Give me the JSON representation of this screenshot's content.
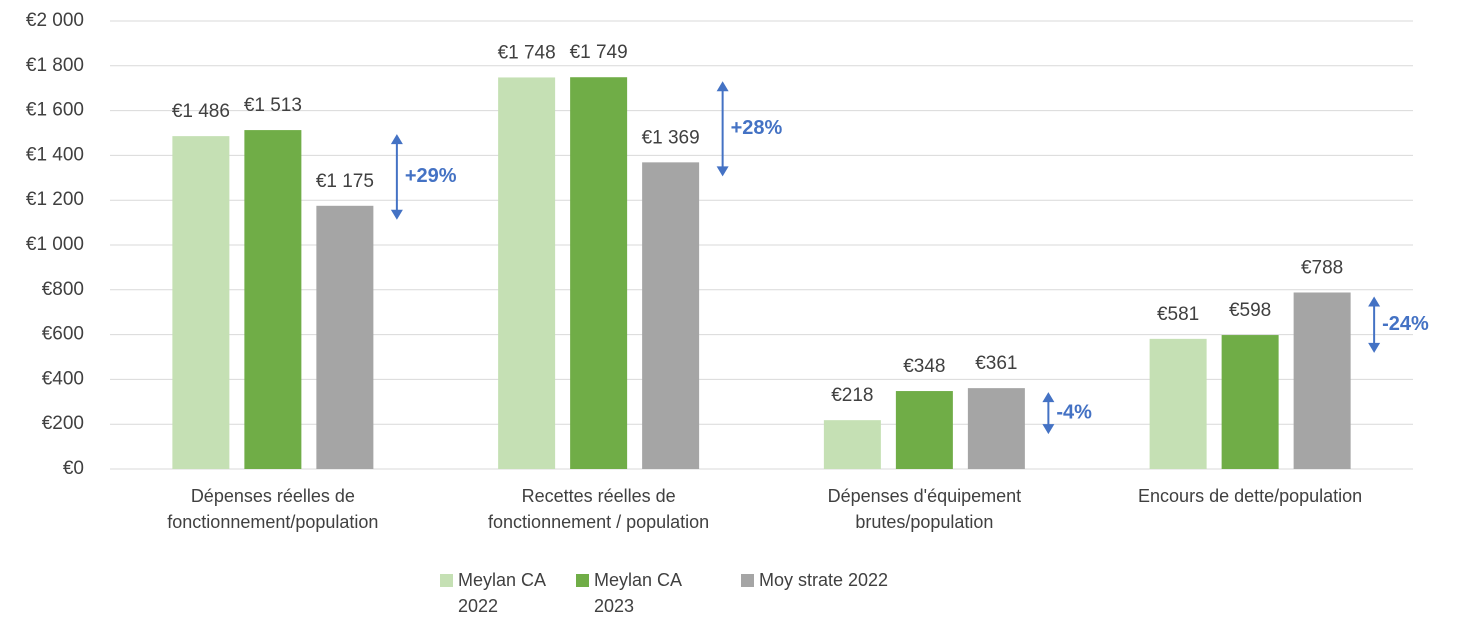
{
  "chart_data": {
    "type": "bar",
    "categories": [
      "Dépenses réelles de fonctionnement/population",
      "Recettes réelles de fonctionnement / population",
      "Dépenses d'équipement brutes/population",
      "Encours de dette/population"
    ],
    "series": [
      {
        "name": "Meylan CA 2022",
        "color": "#c5e0b4",
        "values": [
          1486,
          1748,
          218,
          581
        ],
        "value_labels": [
          "€1 486",
          "€1 748",
          "€218",
          "€581"
        ]
      },
      {
        "name": "Meylan CA 2023",
        "color": "#70ad47",
        "values": [
          1513,
          1749,
          348,
          598
        ],
        "value_labels": [
          "€1 513",
          "€1 749",
          "€348",
          "€598"
        ]
      },
      {
        "name": "Moy strate 2022",
        "color": "#a5a5a5",
        "values": [
          1175,
          1369,
          361,
          788
        ],
        "value_labels": [
          "€1 175",
          "€1 369",
          "€361",
          "€788"
        ]
      }
    ],
    "annotations": [
      "+29%",
      "+28%",
      "-4%",
      "-24%"
    ],
    "annotation_color": "#4472c4",
    "ylim": [
      0,
      2000
    ],
    "yticks": [
      {
        "value": 0,
        "label": "€0"
      },
      {
        "value": 200,
        "label": "€200"
      },
      {
        "value": 400,
        "label": "€400"
      },
      {
        "value": 600,
        "label": "€600"
      },
      {
        "value": 800,
        "label": "€800"
      },
      {
        "value": 1000,
        "label": "€1 000"
      },
      {
        "value": 1200,
        "label": "€1 200"
      },
      {
        "value": 1400,
        "label": "€1 400"
      },
      {
        "value": 1600,
        "label": "€1 600"
      },
      {
        "value": 1800,
        "label": "€1 800"
      },
      {
        "value": 2000,
        "label": "€2 000"
      }
    ],
    "grid": true,
    "legend": "bottom"
  }
}
